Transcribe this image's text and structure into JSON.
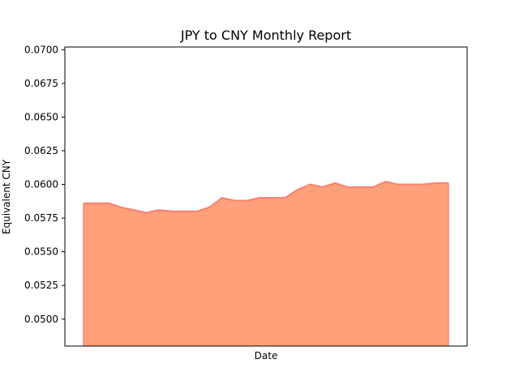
{
  "chart_data": {
    "type": "area",
    "title": "JPY to CNY Monthly Report",
    "xlabel": "Date",
    "ylabel": "Equivalent CNY",
    "ylim": [
      0.048,
      0.0702
    ],
    "yticks": [
      "0.0500",
      "0.0525",
      "0.0550",
      "0.0575",
      "0.0600",
      "0.0625",
      "0.0650",
      "0.0675",
      "0.0700"
    ],
    "grid": false,
    "series": [
      {
        "values": [
          0.0586,
          0.0586,
          0.0586,
          0.0583,
          0.0581,
          0.0579,
          0.0581,
          0.058,
          0.058,
          0.058,
          0.0583,
          0.059,
          0.0588,
          0.0588,
          0.059,
          0.059,
          0.059,
          0.0596,
          0.06,
          0.0598,
          0.0601,
          0.0598,
          0.0598,
          0.0598,
          0.0602,
          0.06,
          0.06,
          0.06,
          0.0601,
          0.0601
        ],
        "fill_color": "#ffa07a",
        "line_color": "#fa8072"
      }
    ]
  }
}
